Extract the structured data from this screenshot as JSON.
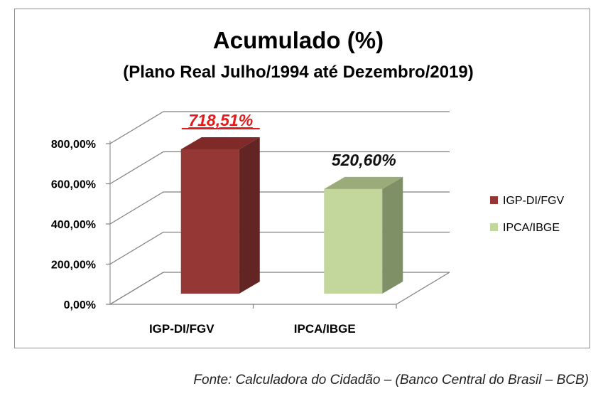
{
  "chart_data": {
    "type": "bar",
    "title": "Acumulado (%)",
    "subtitle": "(Plano Real Julho/1994 até Dezembro/2019)",
    "categories": [
      "IGP-DI/FGV",
      "IPCA/IBGE"
    ],
    "values": [
      718.51,
      520.6
    ],
    "data_labels": [
      "718,51%",
      "520,60%"
    ],
    "y_ticks": [
      "0,00%",
      "200,00%",
      "400,00%",
      "600,00%",
      "800,00%"
    ],
    "ylim": [
      0,
      800
    ],
    "grid": true,
    "legend_position": "right",
    "legend": [
      {
        "name": "IGP-DI/FGV",
        "color": "#953735"
      },
      {
        "name": "IPCA/IBGE",
        "color": "#c3d69b"
      }
    ],
    "colors": {
      "bar1_front": "#953735",
      "bar1_side": "#632523",
      "bar1_top": "#7f2a28",
      "bar2_front": "#c3d69b",
      "bar2_side": "#7f8f66",
      "bar2_top": "#9bab7a",
      "highlight_label": "#e31b1b",
      "grid": "#7f7f7f"
    }
  },
  "source": "Fonte: Calculadora do Cidadão – (Banco Central do Brasil – BCB)"
}
